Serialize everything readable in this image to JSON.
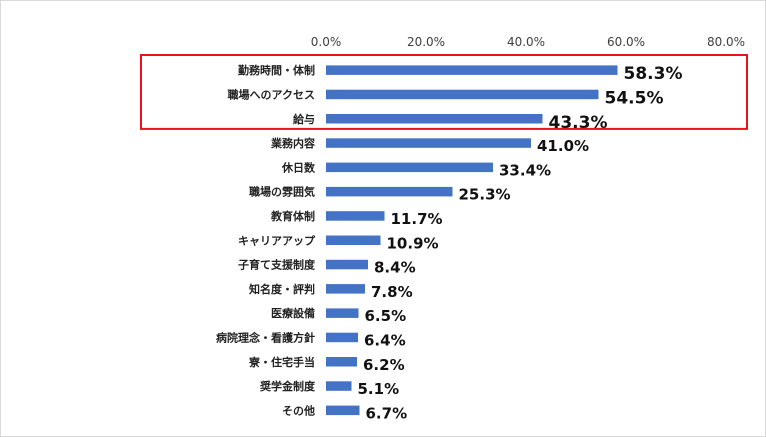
{
  "chart_data": {
    "type": "bar",
    "orientation": "horizontal",
    "xlim": [
      0,
      80
    ],
    "ticks": [
      "0.0%",
      "20.0%",
      "40.0%",
      "60.0%",
      "80.0%"
    ],
    "tick_values": [
      0,
      20,
      40,
      60,
      80
    ],
    "categories": [
      "勤務時間・体制",
      "職場へのアクセス",
      "給与",
      "業務内容",
      "休日数",
      "職場の雰囲気",
      "教育体制",
      "キャリアアップ",
      "子育て支援制度",
      "知名度・評判",
      "医療設備",
      "病院理念・看護方針",
      "寮・住宅手当",
      "奨学金制度",
      "その他"
    ],
    "values": [
      58.3,
      54.5,
      43.3,
      41.0,
      33.4,
      25.3,
      11.7,
      10.9,
      8.4,
      7.8,
      6.5,
      6.4,
      6.2,
      5.1,
      6.7
    ],
    "data_labels": [
      "58.3%",
      "54.5%",
      "43.3%",
      "41.0%",
      "33.4%",
      "25.3%",
      "11.7%",
      "10.9%",
      "8.4%",
      "7.8%",
      "6.5%",
      "6.4%",
      "6.2%",
      "5.1%",
      "6.7%"
    ],
    "highlighted_categories": [
      "勤務時間・体制",
      "職場へのアクセス",
      "給与"
    ],
    "bar_color": "#4472C4",
    "highlight_color": "#E8141B",
    "grid": false,
    "legend": "none"
  }
}
